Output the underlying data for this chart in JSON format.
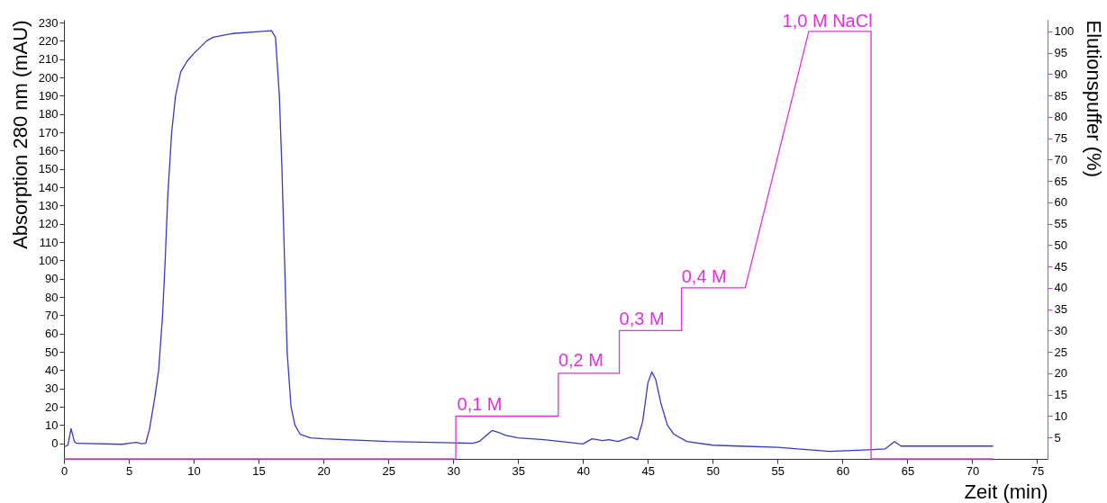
{
  "chart_data": {
    "type": "line",
    "xlabel": "Zeit (min)",
    "ylabel": "Absorption 280 nm  (mAU)",
    "y2label": "Elutionspuffer (%)",
    "xlim": [
      0,
      75.8
    ],
    "xticks": [
      0,
      5,
      10,
      15,
      20,
      25,
      30,
      35,
      40,
      45,
      50,
      55,
      60,
      65,
      70,
      75
    ],
    "ylim": [
      -8.5,
      231.5
    ],
    "yticks": [
      0,
      10,
      20,
      30,
      40,
      50,
      60,
      70,
      80,
      90,
      100,
      110,
      120,
      130,
      140,
      150,
      160,
      170,
      180,
      190,
      200,
      210,
      220,
      230
    ],
    "y2lim": [
      0,
      102.7
    ],
    "y2ticks": [
      5,
      10,
      15,
      20,
      25,
      30,
      35,
      40,
      45,
      50,
      55,
      60,
      65,
      70,
      75,
      80,
      85,
      90,
      95,
      100
    ],
    "grid": false,
    "series": [
      {
        "color": "#3838c8",
        "x": [
          0,
          0.3,
          0.55,
          0.8,
          1,
          4.5,
          5,
          5.6,
          6,
          6.3,
          6.6,
          7,
          7.3,
          7.6,
          7.8,
          8,
          8.3,
          8.6,
          9,
          9.5,
          10,
          11,
          11.5,
          13,
          15,
          16,
          16.3,
          16.6,
          16.8,
          17,
          17.2,
          17.5,
          17.8,
          18.2,
          19,
          20,
          25,
          30,
          31.5,
          32,
          32.5,
          33,
          33.5,
          34,
          35,
          37,
          40,
          40.7,
          41.5,
          42,
          42.7,
          43.7,
          44.2,
          44.6,
          45,
          45.3,
          45.6,
          46,
          46.5,
          47,
          48,
          50,
          52,
          55,
          59,
          62,
          63.3,
          64,
          64.5,
          65,
          71.6
        ],
        "values": [
          -2,
          -1,
          8,
          1,
          0,
          -0.5,
          0,
          0.5,
          -0.2,
          0,
          8,
          25,
          40,
          70,
          100,
          135,
          170,
          190,
          203,
          209,
          213,
          220,
          222,
          224,
          225,
          225.5,
          222,
          190,
          150,
          100,
          50,
          20,
          10,
          5,
          3,
          2.5,
          1,
          0.3,
          0,
          1,
          4,
          7,
          6,
          4.5,
          3,
          2,
          -0.3,
          2.5,
          1.5,
          2,
          1,
          3.5,
          2,
          12,
          33,
          39,
          35,
          22,
          10,
          5,
          1,
          -1,
          -1.5,
          -2.2,
          -4.4,
          -3.5,
          -3,
          1,
          -1.5,
          -1.5,
          -1.5
        ]
      },
      {
        "axis": "y2",
        "color": "#e030e0",
        "x": [
          0,
          30.2,
          30.2,
          38.1,
          38.1,
          42.8,
          42.8,
          47.6,
          47.6,
          52.5,
          57.4,
          62.2,
          62.2,
          71.6
        ],
        "values": [
          0,
          0,
          10,
          10,
          20,
          20,
          30,
          30,
          40,
          40,
          100,
          100,
          0,
          0
        ]
      }
    ],
    "annotations": [
      {
        "text": "0,1 M",
        "x": 30.3,
        "y": 16
      },
      {
        "text": "0,2 M",
        "x": 38.1,
        "y": 40
      },
      {
        "text": "0,3 M",
        "x": 42.8,
        "y": 63
      },
      {
        "text": "0,4 M",
        "x": 47.6,
        "y": 86
      },
      "1,0 M NaCl"
    ]
  }
}
